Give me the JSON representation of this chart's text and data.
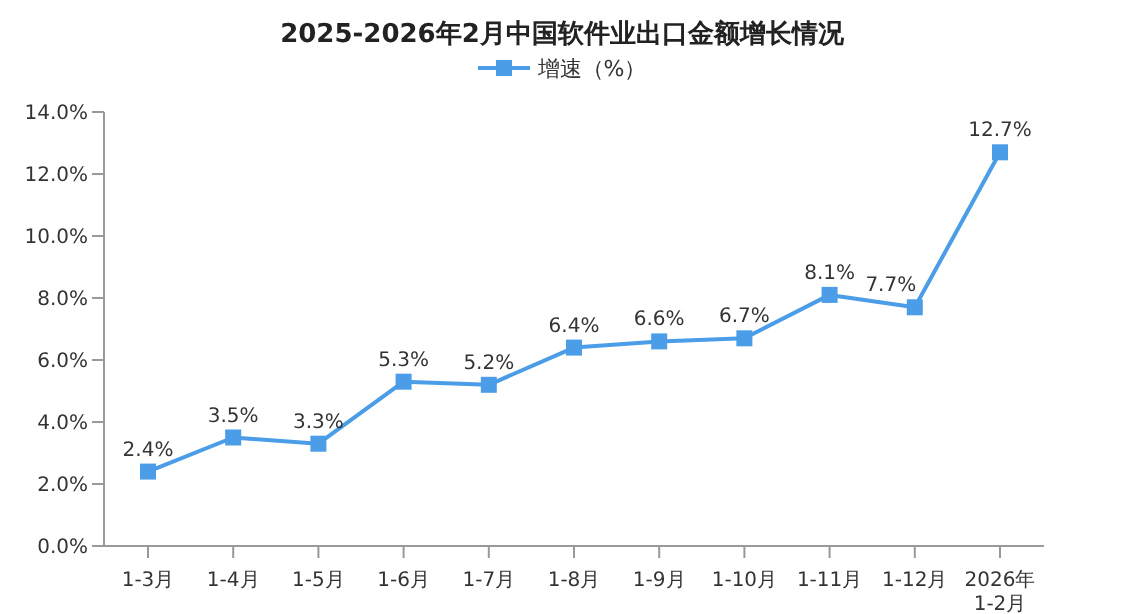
{
  "chart_data": {
    "type": "line",
    "title": "2025-2026年2月中国软件业出口金额增长情况",
    "categories": [
      "1-3月",
      "1-4月",
      "1-5月",
      "1-6月",
      "1-7月",
      "1-8月",
      "1-9月",
      "1-10月",
      "1-11月",
      "1-12月",
      "2026年\n1-2月"
    ],
    "series": [
      {
        "name": "增速（%）",
        "color": "#4a9de6",
        "values": [
          2.4,
          3.5,
          3.3,
          5.3,
          5.2,
          6.4,
          6.6,
          6.7,
          8.1,
          7.7,
          12.7
        ],
        "value_labels": [
          "2.4%",
          "3.5%",
          "3.3%",
          "5.3%",
          "5.2%",
          "6.4%",
          "6.6%",
          "6.7%",
          "8.1%",
          "7.7%",
          "12.7%"
        ]
      }
    ],
    "ylim": [
      0,
      14
    ],
    "yticks": [
      {
        "value": 0,
        "label": "0.0%"
      },
      {
        "value": 2,
        "label": "2.0%"
      },
      {
        "value": 4,
        "label": "4.0%"
      },
      {
        "value": 6,
        "label": "6.0%"
      },
      {
        "value": 8,
        "label": "8.0%"
      },
      {
        "value": 10,
        "label": "10.0%"
      },
      {
        "value": 12,
        "label": "12.0%"
      },
      {
        "value": 14,
        "label": "14.0%"
      }
    ],
    "grid": false,
    "legend": "top",
    "marker": "square",
    "line_style": "solid"
  }
}
